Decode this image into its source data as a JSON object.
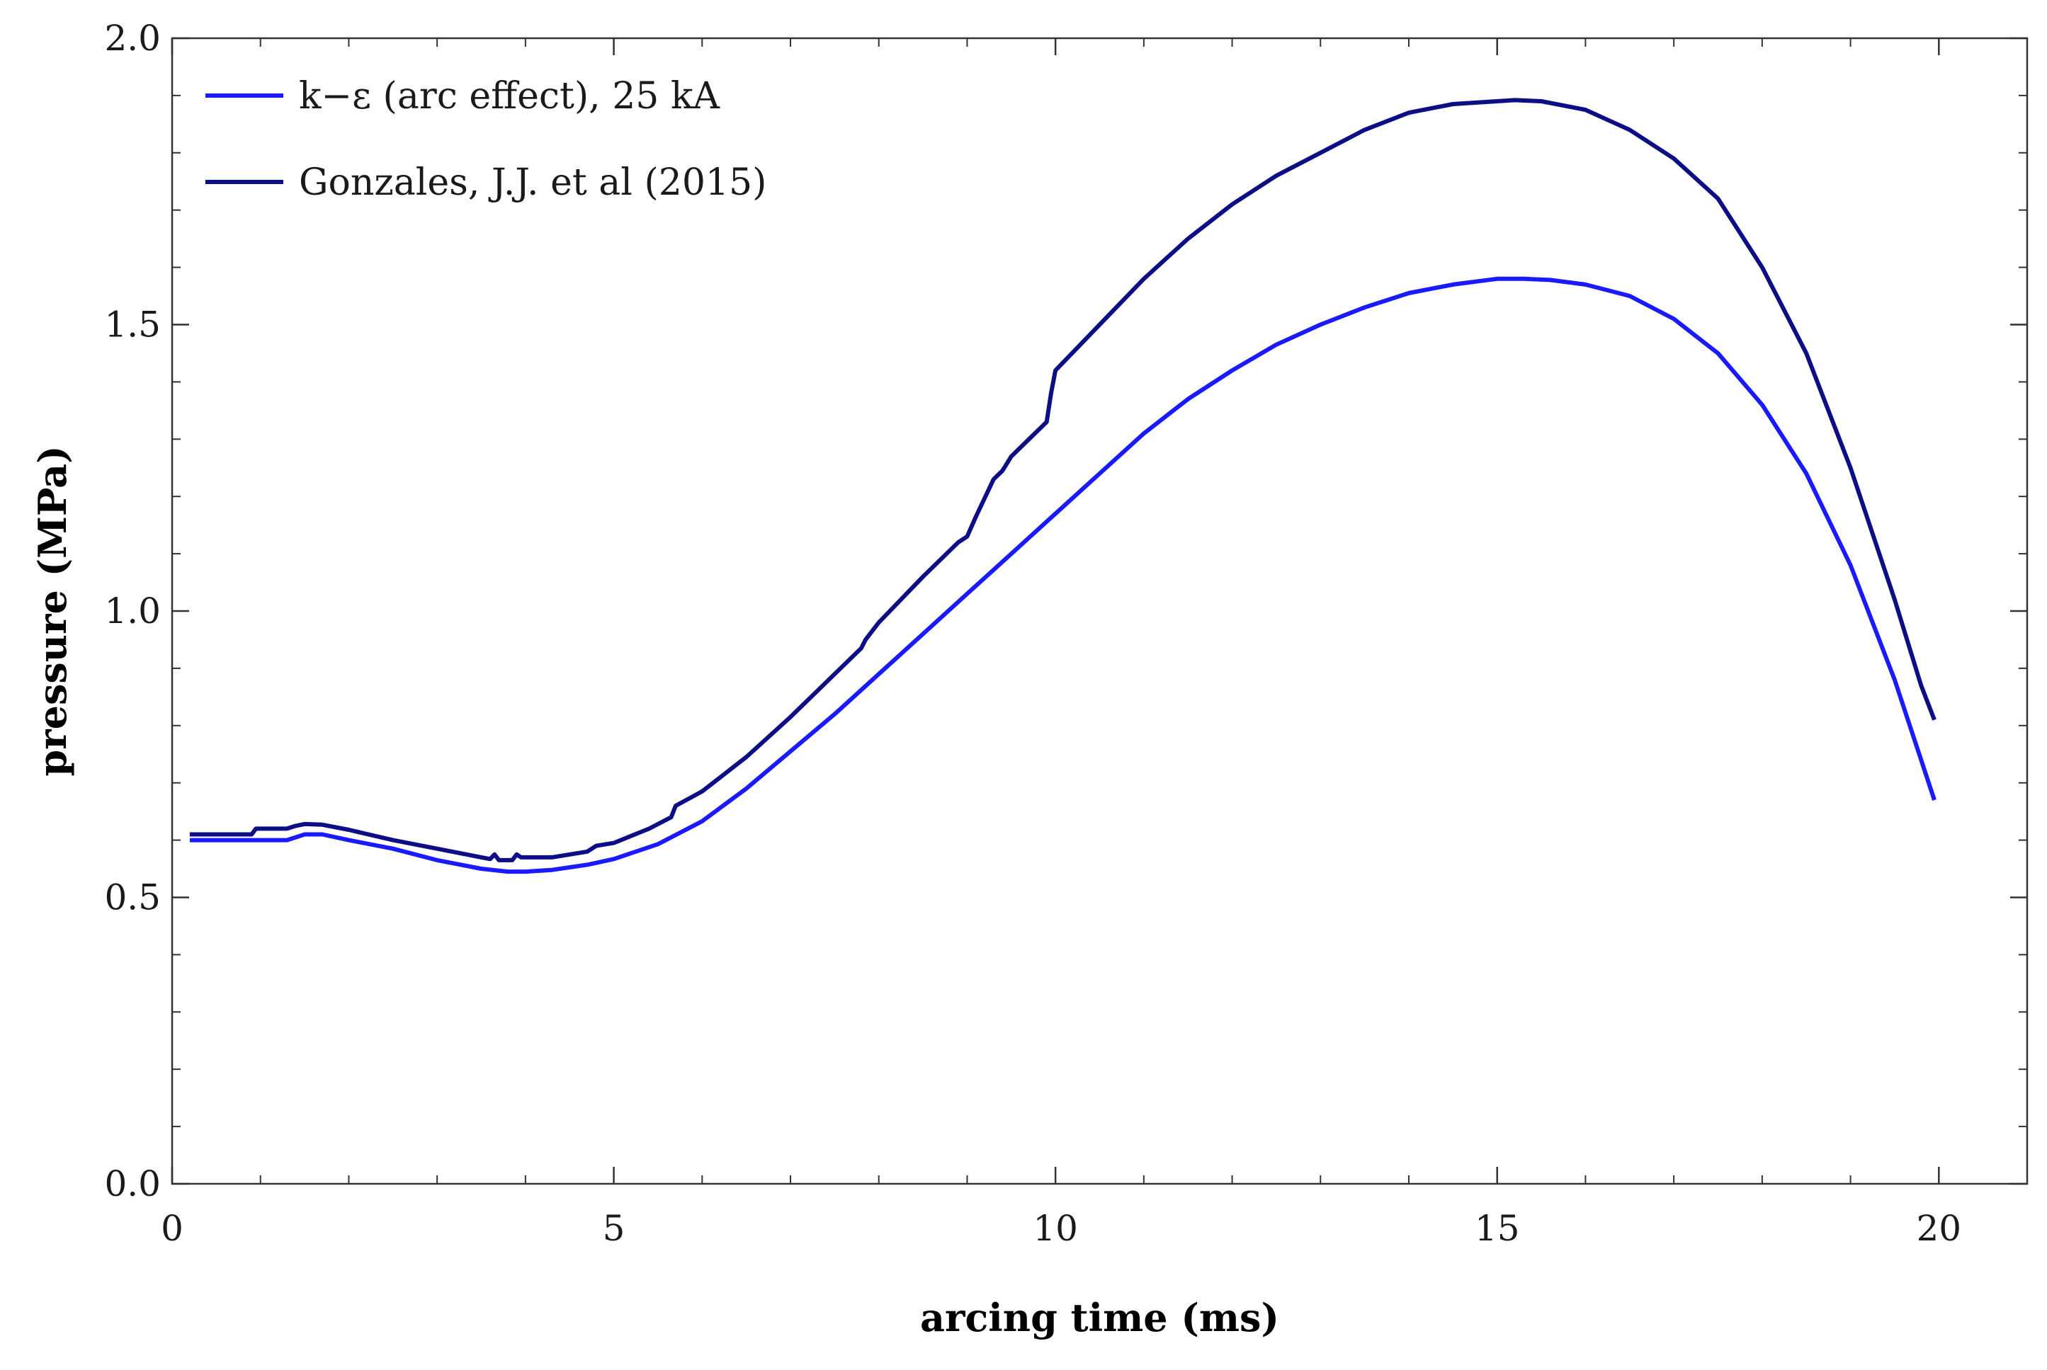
{
  "chart_data": {
    "type": "line",
    "title": "",
    "xlabel": "arcing time (ms)",
    "ylabel": "pressure (MPa)",
    "xlim": [
      0,
      21
    ],
    "ylim": [
      0,
      2.0
    ],
    "x_ticks": [
      0,
      5,
      10,
      15,
      20
    ],
    "x_tick_labels": [
      "0",
      "5",
      "10",
      "15",
      "20"
    ],
    "y_ticks": [
      0,
      0.5,
      1.0,
      1.5,
      2.0
    ],
    "y_tick_labels": [
      "0.0",
      "0.5",
      "1.0",
      "1.5",
      "2.0"
    ],
    "x_minor_step": 1,
    "y_minor_step": 0.1,
    "grid": false,
    "legend_position": "top-left",
    "series": [
      {
        "name": "k−ε (arc effect), 25 kA",
        "color": "#1a1aff",
        "x": [
          0.2,
          1.3,
          1.4,
          1.5,
          1.7,
          2.0,
          2.5,
          3.0,
          3.5,
          3.8,
          4.0,
          4.3,
          4.7,
          5.0,
          5.5,
          6.0,
          6.5,
          7.0,
          7.5,
          8.0,
          8.5,
          9.0,
          9.5,
          10.0,
          10.5,
          11.0,
          11.5,
          12.0,
          12.5,
          13.0,
          13.5,
          14.0,
          14.5,
          15.0,
          15.3,
          15.6,
          16.0,
          16.5,
          17.0,
          17.5,
          18.0,
          18.5,
          19.0,
          19.5,
          19.8,
          19.95
        ],
        "y": [
          0.6,
          0.6,
          0.605,
          0.61,
          0.61,
          0.6,
          0.585,
          0.565,
          0.55,
          0.545,
          0.545,
          0.548,
          0.557,
          0.567,
          0.593,
          0.633,
          0.69,
          0.755,
          0.82,
          0.89,
          0.96,
          1.03,
          1.1,
          1.17,
          1.24,
          1.31,
          1.37,
          1.42,
          1.465,
          1.5,
          1.53,
          1.555,
          1.57,
          1.58,
          1.58,
          1.578,
          1.57,
          1.55,
          1.51,
          1.45,
          1.36,
          1.24,
          1.08,
          0.88,
          0.74,
          0.67
        ]
      },
      {
        "name": "Gonzales, J.J. et al (2015)",
        "color": "#0d0d85",
        "x": [
          0.2,
          0.9,
          0.95,
          1.3,
          1.4,
          1.5,
          1.7,
          2.0,
          2.5,
          3.0,
          3.5,
          3.6,
          3.65,
          3.7,
          3.85,
          3.9,
          3.95,
          4.0,
          4.3,
          4.7,
          4.8,
          5.0,
          5.4,
          5.65,
          5.7,
          6.0,
          6.5,
          7.0,
          7.5,
          7.8,
          7.85,
          8.0,
          8.5,
          8.9,
          9.0,
          9.1,
          9.3,
          9.4,
          9.5,
          9.7,
          9.9,
          9.95,
          10.0,
          10.5,
          11.0,
          11.5,
          12.0,
          12.5,
          13.0,
          13.5,
          14.0,
          14.5,
          15.0,
          15.2,
          15.5,
          16.0,
          16.5,
          17.0,
          17.5,
          18.0,
          18.5,
          19.0,
          19.5,
          19.8,
          19.95
        ],
        "y": [
          0.61,
          0.61,
          0.62,
          0.62,
          0.625,
          0.628,
          0.627,
          0.618,
          0.6,
          0.585,
          0.57,
          0.567,
          0.575,
          0.565,
          0.565,
          0.575,
          0.57,
          0.57,
          0.57,
          0.58,
          0.59,
          0.595,
          0.62,
          0.64,
          0.66,
          0.685,
          0.745,
          0.815,
          0.89,
          0.935,
          0.95,
          0.98,
          1.06,
          1.12,
          1.13,
          1.165,
          1.23,
          1.245,
          1.27,
          1.3,
          1.33,
          1.38,
          1.42,
          1.5,
          1.58,
          1.65,
          1.71,
          1.76,
          1.8,
          1.84,
          1.87,
          1.885,
          1.89,
          1.892,
          1.89,
          1.875,
          1.84,
          1.79,
          1.72,
          1.6,
          1.45,
          1.25,
          1.02,
          0.87,
          0.81
        ]
      }
    ]
  }
}
